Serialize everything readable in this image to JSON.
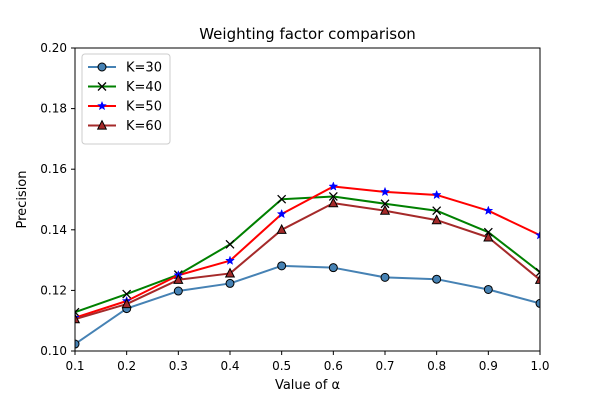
{
  "chart_data": {
    "type": "line",
    "title": "Weighting factor comparison",
    "xlabel": "Value of α",
    "ylabel": "Precision",
    "x": [
      0.1,
      0.2,
      0.3,
      0.4,
      0.5,
      0.6,
      0.7,
      0.8,
      0.9,
      1.0
    ],
    "x_tick_labels": [
      "0.1",
      "0.2",
      "0.3",
      "0.4",
      "0.5",
      "0.6",
      "0.7",
      "0.8",
      "0.9",
      "1.0"
    ],
    "y_tick_values": [
      0.1,
      0.12,
      0.14,
      0.16,
      0.18,
      0.2
    ],
    "y_tick_labels": [
      "0.10",
      "0.12",
      "0.14",
      "0.16",
      "0.18",
      "0.20"
    ],
    "xlim": [
      0.1,
      1.0
    ],
    "ylim": [
      0.1,
      0.2
    ],
    "grid": false,
    "legend_position": "top-left",
    "series": [
      {
        "name": "K=30",
        "color": "#4682b4",
        "marker": "circle",
        "values": [
          0.1023,
          0.114,
          0.1198,
          0.1223,
          0.1281,
          0.1275,
          0.1243,
          0.1237,
          0.1203,
          0.1157
        ]
      },
      {
        "name": "K=40",
        "color": "#008000",
        "marker": "x",
        "values": [
          0.1128,
          0.1188,
          0.1252,
          0.1352,
          0.1501,
          0.151,
          0.1486,
          0.1463,
          0.1392,
          0.126
        ]
      },
      {
        "name": "K=50",
        "color": "#ff0000",
        "marker": "star",
        "values": [
          0.111,
          0.1165,
          0.125,
          0.1298,
          0.1452,
          0.1543,
          0.1525,
          0.1515,
          0.1463,
          0.1382
        ]
      },
      {
        "name": "K=60",
        "color": "#a52a2a",
        "marker": "triangle",
        "values": [
          0.1105,
          0.1155,
          0.1235,
          0.1256,
          0.14,
          0.1488,
          0.1463,
          0.1432,
          0.1375,
          0.1235
        ]
      }
    ]
  }
}
